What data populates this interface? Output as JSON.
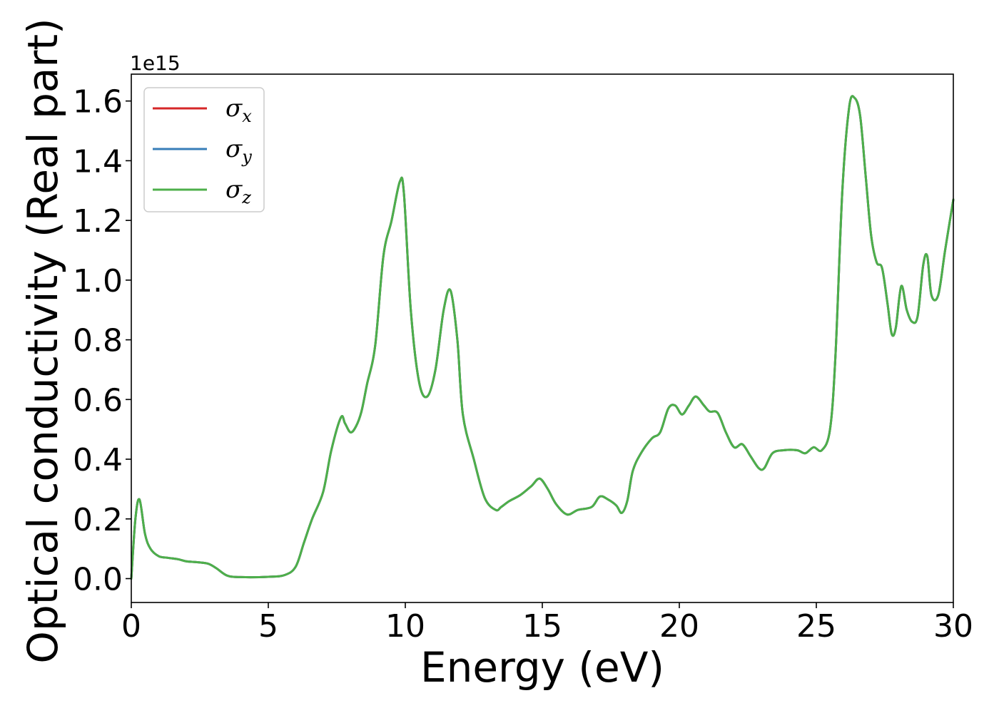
{
  "chart_data": {
    "type": "line",
    "title": "",
    "xlabel": "Energy (eV)",
    "ylabel": "Optical conductivity (Real part)",
    "y_offset_label": "1e15",
    "xlim": [
      0,
      30
    ],
    "ylim": [
      -0.08,
      1.69
    ],
    "x_ticks": [
      0,
      5,
      10,
      15,
      20,
      25,
      30
    ],
    "y_ticks": [
      0.0,
      0.2,
      0.4,
      0.6,
      0.8,
      1.0,
      1.2,
      1.4,
      1.6
    ],
    "x_tick_labels": [
      "0",
      "5",
      "10",
      "15",
      "20",
      "25",
      "30"
    ],
    "y_tick_labels": [
      "0.0",
      "0.2",
      "0.4",
      "0.6",
      "0.8",
      "1.0",
      "1.2",
      "1.4",
      "1.6"
    ],
    "grid": false,
    "legend_position": "top-left",
    "series": [
      {
        "name": "σx",
        "symbol": "σ",
        "subscript": "x",
        "color": "#d62728"
      },
      {
        "name": "σy",
        "symbol": "σ",
        "subscript": "y",
        "color": "#377eb8"
      },
      {
        "name": "σz",
        "symbol": "σ",
        "subscript": "z",
        "color": "#4daf4a"
      }
    ],
    "x": [
      0,
      0.15,
      0.3,
      0.5,
      0.7,
      1.0,
      1.3,
      1.7,
      2.0,
      2.4,
      2.8,
      3.1,
      3.5,
      4.0,
      5.0,
      5.6,
      6.0,
      6.3,
      6.6,
      7.0,
      7.3,
      7.65,
      7.8,
      8.0,
      8.2,
      8.4,
      8.6,
      8.9,
      9.2,
      9.5,
      9.8,
      9.95,
      10.2,
      10.5,
      10.8,
      11.1,
      11.4,
      11.65,
      11.9,
      12.1,
      12.5,
      12.9,
      13.3,
      13.5,
      13.8,
      14.2,
      14.6,
      14.9,
      15.2,
      15.5,
      15.9,
      16.3,
      16.8,
      17.1,
      17.4,
      17.7,
      17.9,
      18.1,
      18.3,
      18.6,
      19.0,
      19.3,
      19.6,
      19.85,
      20.1,
      20.35,
      20.6,
      20.9,
      21.1,
      21.4,
      21.7,
      22.0,
      22.3,
      22.6,
      22.9,
      23.1,
      23.4,
      23.8,
      24.3,
      24.6,
      24.9,
      25.2,
      25.5,
      25.7,
      25.95,
      26.2,
      26.4,
      26.6,
      26.8,
      27.0,
      27.2,
      27.4,
      27.6,
      27.75,
      27.9,
      28.1,
      28.3,
      28.5,
      28.7,
      28.9,
      29.05,
      29.2,
      29.45,
      29.7,
      30.0
    ],
    "y": [
      0.0,
      0.2,
      0.265,
      0.15,
      0.1,
      0.075,
      0.07,
      0.065,
      0.058,
      0.055,
      0.05,
      0.035,
      0.01,
      0.005,
      0.006,
      0.012,
      0.04,
      0.12,
      0.2,
      0.29,
      0.43,
      0.54,
      0.52,
      0.49,
      0.51,
      0.56,
      0.65,
      0.78,
      1.08,
      1.2,
      1.33,
      1.29,
      0.9,
      0.66,
      0.61,
      0.7,
      0.9,
      0.965,
      0.8,
      0.55,
      0.4,
      0.27,
      0.23,
      0.24,
      0.26,
      0.28,
      0.31,
      0.335,
      0.3,
      0.25,
      0.215,
      0.23,
      0.24,
      0.275,
      0.265,
      0.245,
      0.22,
      0.26,
      0.36,
      0.42,
      0.47,
      0.49,
      0.57,
      0.58,
      0.55,
      0.58,
      0.61,
      0.58,
      0.56,
      0.555,
      0.49,
      0.44,
      0.45,
      0.41,
      0.37,
      0.37,
      0.42,
      0.43,
      0.43,
      0.42,
      0.44,
      0.43,
      0.5,
      0.75,
      1.3,
      1.58,
      1.61,
      1.55,
      1.35,
      1.15,
      1.06,
      1.04,
      0.92,
      0.82,
      0.84,
      0.98,
      0.9,
      0.86,
      0.88,
      1.05,
      1.08,
      0.95,
      0.95,
      1.1,
      1.27
    ]
  }
}
